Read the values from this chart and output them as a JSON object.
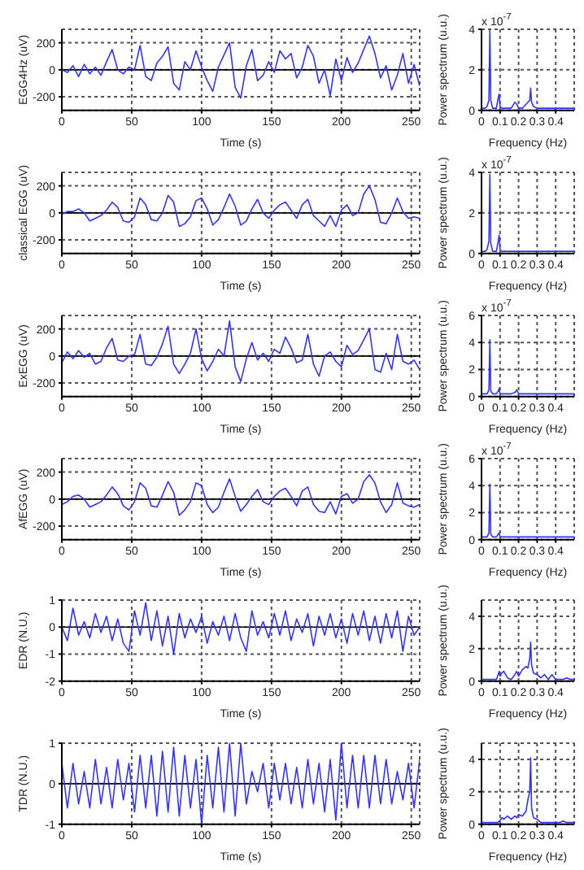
{
  "chart_data": [
    {
      "type": "line",
      "xlabel": "Time (s)",
      "ylabel": "EGG4Hz (uV)",
      "xlim": [
        0,
        256
      ],
      "xticks": [
        0,
        50,
        100,
        150,
        200,
        250
      ],
      "ylim": [
        -300,
        300
      ],
      "yticks": [
        -200,
        0,
        200
      ],
      "grid": true,
      "ref_lines": [
        {
          "axis": "y",
          "value": 0,
          "color": "#000000"
        }
      ],
      "x": [
        0,
        4,
        8,
        12,
        16,
        20,
        24,
        28,
        32,
        36,
        40,
        44,
        48,
        52,
        56,
        60,
        64,
        68,
        72,
        76,
        80,
        84,
        88,
        92,
        96,
        100,
        104,
        108,
        112,
        116,
        120,
        124,
        128,
        132,
        136,
        140,
        144,
        148,
        152,
        156,
        160,
        164,
        168,
        172,
        176,
        180,
        184,
        188,
        192,
        196,
        200,
        204,
        208,
        212,
        216,
        220,
        224,
        228,
        232,
        236,
        240,
        244,
        248,
        252,
        256
      ],
      "series": [
        {
          "color": "#3333ff",
          "values": [
            0,
            -20,
            30,
            -50,
            40,
            -30,
            20,
            -40,
            60,
            150,
            0,
            -30,
            20,
            0,
            180,
            -50,
            -80,
            50,
            100,
            170,
            -100,
            -150,
            60,
            0,
            140,
            20,
            -80,
            -160,
            20,
            110,
            200,
            -130,
            -210,
            30,
            150,
            -80,
            -40,
            60,
            -20,
            140,
            80,
            120,
            -60,
            20,
            180,
            100,
            -100,
            0,
            -190,
            80,
            -80,
            90,
            -20,
            50,
            150,
            250,
            120,
            -60,
            30,
            -150,
            -40,
            120,
            -100,
            40,
            -120
          ]
        }
      ]
    },
    {
      "type": "line",
      "xlabel": "Frequency (Hz)",
      "ylabel": "Power spectrum (u.u.)",
      "annotations": [
        "x 10$^{-7}$"
      ],
      "xlim": [
        0,
        0.5
      ],
      "xticks": [
        0,
        0.1,
        0.2,
        0.3,
        0.4
      ],
      "ylim": [
        0,
        4
      ],
      "yticks": [
        0,
        2,
        4
      ],
      "grid": true,
      "x": [
        0,
        0.01,
        0.02,
        0.03,
        0.04,
        0.045,
        0.05,
        0.06,
        0.07,
        0.08,
        0.09,
        0.095,
        0.1,
        0.11,
        0.12,
        0.14,
        0.16,
        0.18,
        0.19,
        0.2,
        0.22,
        0.24,
        0.25,
        0.26,
        0.265,
        0.27,
        0.28,
        0.3,
        0.32,
        0.34,
        0.36,
        0.38,
        0.4,
        0.42,
        0.44,
        0.46,
        0.48,
        0.5
      ],
      "series": [
        {
          "color": "#3333ff",
          "values": [
            0.1,
            0.1,
            0.1,
            0.2,
            0.5,
            4,
            0.5,
            0.1,
            0.1,
            0.1,
            0.6,
            0.8,
            0.2,
            0.1,
            0.1,
            0.1,
            0.1,
            0.4,
            0.3,
            0.1,
            0.1,
            0.3,
            0.4,
            0.5,
            1.1,
            0.4,
            0.2,
            0.1,
            0.1,
            0.1,
            0.1,
            0.1,
            0.1,
            0.1,
            0.1,
            0.1,
            0.1,
            0.1
          ]
        }
      ]
    },
    {
      "type": "line",
      "xlabel": "Time (s)",
      "ylabel": "classical EGG (uV)",
      "xlim": [
        0,
        256
      ],
      "xticks": [
        0,
        50,
        100,
        150,
        200,
        250
      ],
      "ylim": [
        -300,
        300
      ],
      "yticks": [
        -200,
        0,
        200
      ],
      "grid": true,
      "ref_lines": [
        {
          "axis": "y",
          "value": 0,
          "color": "#000000"
        }
      ],
      "x": [
        0,
        4,
        8,
        12,
        16,
        20,
        24,
        28,
        32,
        36,
        40,
        44,
        48,
        52,
        56,
        60,
        64,
        68,
        72,
        76,
        80,
        84,
        88,
        92,
        96,
        100,
        104,
        108,
        112,
        116,
        120,
        124,
        128,
        132,
        136,
        140,
        144,
        148,
        152,
        156,
        160,
        164,
        168,
        172,
        176,
        180,
        184,
        188,
        192,
        196,
        200,
        204,
        208,
        212,
        216,
        220,
        224,
        228,
        232,
        236,
        240,
        244,
        248,
        252,
        256
      ],
      "series": [
        {
          "color": "#3333ff",
          "values": [
            -10,
            10,
            10,
            30,
            0,
            -60,
            -40,
            -20,
            20,
            80,
            40,
            -60,
            -70,
            -30,
            110,
            60,
            -50,
            -60,
            0,
            130,
            80,
            -100,
            -80,
            -30,
            90,
            110,
            30,
            -90,
            -50,
            40,
            140,
            50,
            -90,
            -60,
            30,
            100,
            0,
            -40,
            20,
            60,
            80,
            20,
            -40,
            60,
            100,
            -20,
            -60,
            -100,
            -20,
            -100,
            20,
            60,
            -20,
            0,
            140,
            200,
            100,
            -70,
            -80,
            0,
            110,
            10,
            -40,
            -30,
            -40
          ]
        }
      ]
    },
    {
      "type": "line",
      "xlabel": "Frequency (Hz)",
      "ylabel": "Power spectrum (u.u.)",
      "annotations": [
        "x 10$^{-7}$"
      ],
      "xlim": [
        0,
        0.5
      ],
      "xticks": [
        0,
        0.1,
        0.2,
        0.3,
        0.4
      ],
      "ylim": [
        0,
        4
      ],
      "yticks": [
        0,
        2,
        4
      ],
      "grid": true,
      "x": [
        0,
        0.01,
        0.02,
        0.03,
        0.04,
        0.045,
        0.05,
        0.06,
        0.07,
        0.08,
        0.09,
        0.095,
        0.1,
        0.11,
        0.12,
        0.14,
        0.16,
        0.18,
        0.19,
        0.2,
        0.22,
        0.24,
        0.25,
        0.26,
        0.265,
        0.27,
        0.28,
        0.3,
        0.32,
        0.34,
        0.36,
        0.38,
        0.4,
        0.42,
        0.44,
        0.46,
        0.48,
        0.5
      ],
      "series": [
        {
          "color": "#3333ff",
          "values": [
            0.1,
            0.1,
            0.1,
            0.2,
            0.6,
            3.9,
            0.5,
            0.1,
            0.1,
            0.1,
            0.6,
            0.9,
            0.2,
            0.1,
            0.1,
            0.1,
            0.1,
            0.1,
            0.1,
            0.1,
            0.1,
            0.1,
            0.1,
            0.1,
            0.1,
            0.1,
            0.1,
            0.1,
            0.1,
            0.1,
            0.1,
            0.1,
            0.1,
            0.1,
            0.1,
            0.1,
            0.1,
            0.1
          ]
        }
      ]
    },
    {
      "type": "line",
      "xlabel": "Time (s)",
      "ylabel": "ExEGG (uV)",
      "xlim": [
        0,
        256
      ],
      "xticks": [
        0,
        50,
        100,
        150,
        200,
        250
      ],
      "ylim": [
        -300,
        300
      ],
      "yticks": [
        -200,
        0,
        200
      ],
      "grid": true,
      "ref_lines": [
        {
          "axis": "y",
          "value": 0,
          "color": "#000000"
        }
      ],
      "x": [
        0,
        4,
        8,
        12,
        16,
        20,
        24,
        28,
        32,
        36,
        40,
        44,
        48,
        52,
        56,
        60,
        64,
        68,
        72,
        76,
        80,
        84,
        88,
        92,
        96,
        100,
        104,
        108,
        112,
        116,
        120,
        124,
        128,
        132,
        136,
        140,
        144,
        148,
        152,
        156,
        160,
        164,
        168,
        172,
        176,
        180,
        184,
        188,
        192,
        196,
        200,
        204,
        208,
        212,
        216,
        220,
        224,
        228,
        232,
        236,
        240,
        244,
        248,
        252,
        256
      ],
      "series": [
        {
          "color": "#3333ff",
          "values": [
            -50,
            30,
            -20,
            40,
            -10,
            20,
            -60,
            -40,
            60,
            130,
            -30,
            -40,
            0,
            10,
            160,
            -60,
            -70,
            -10,
            90,
            220,
            -60,
            -130,
            -60,
            20,
            200,
            -20,
            -110,
            -40,
            50,
            0,
            260,
            -80,
            -190,
            -20,
            100,
            -30,
            20,
            -40,
            50,
            20,
            140,
            60,
            -50,
            -30,
            160,
            -60,
            -150,
            0,
            30,
            -40,
            -80,
            80,
            10,
            40,
            120,
            200,
            -100,
            -120,
            20,
            -100,
            160,
            -40,
            -60,
            -30,
            -100
          ]
        }
      ]
    },
    {
      "type": "line",
      "xlabel": "Frequency (Hz)",
      "ylabel": "Power spectrum (u.u.)",
      "annotations": [
        "x 10$^{-7}$"
      ],
      "xlim": [
        0,
        0.5
      ],
      "xticks": [
        0,
        0.1,
        0.2,
        0.3,
        0.4
      ],
      "ylim": [
        0,
        6
      ],
      "yticks": [
        0,
        2,
        4,
        6
      ],
      "grid": true,
      "x": [
        0,
        0.01,
        0.02,
        0.03,
        0.04,
        0.045,
        0.05,
        0.06,
        0.07,
        0.08,
        0.09,
        0.095,
        0.1,
        0.11,
        0.12,
        0.14,
        0.16,
        0.18,
        0.19,
        0.2,
        0.22,
        0.24,
        0.25,
        0.26,
        0.265,
        0.27,
        0.28,
        0.3,
        0.32,
        0.34,
        0.36,
        0.38,
        0.4,
        0.42,
        0.44,
        0.46,
        0.48,
        0.5
      ],
      "series": [
        {
          "color": "#3333ff",
          "values": [
            0.2,
            0.2,
            0.2,
            0.2,
            0.5,
            4.2,
            0.4,
            0.2,
            0.2,
            0.2,
            0.4,
            0.6,
            0.2,
            0.2,
            0.2,
            0.2,
            0.2,
            0.3,
            0.5,
            0.2,
            0.2,
            0.2,
            0.2,
            0.2,
            0.2,
            0.2,
            0.2,
            0.2,
            0.2,
            0.2,
            0.2,
            0.2,
            0.2,
            0.2,
            0.2,
            0.2,
            0.2,
            0.2
          ]
        }
      ]
    },
    {
      "type": "line",
      "xlabel": "Time (s)",
      "ylabel": "AfEGG (uV)",
      "xlim": [
        0,
        256
      ],
      "xticks": [
        0,
        50,
        100,
        150,
        200,
        250
      ],
      "ylim": [
        -300,
        300
      ],
      "yticks": [
        -200,
        0,
        200
      ],
      "grid": true,
      "ref_lines": [
        {
          "axis": "y",
          "value": 0,
          "color": "#000000"
        }
      ],
      "x": [
        0,
        4,
        8,
        12,
        16,
        20,
        24,
        28,
        32,
        36,
        40,
        44,
        48,
        52,
        56,
        60,
        64,
        68,
        72,
        76,
        80,
        84,
        88,
        92,
        96,
        100,
        104,
        108,
        112,
        116,
        120,
        124,
        128,
        132,
        136,
        140,
        144,
        148,
        152,
        156,
        160,
        164,
        168,
        172,
        176,
        180,
        184,
        188,
        192,
        196,
        200,
        204,
        208,
        212,
        216,
        220,
        224,
        228,
        232,
        236,
        240,
        244,
        248,
        252,
        256
      ],
      "series": [
        {
          "color": "#3333ff",
          "values": [
            -40,
            -20,
            20,
            30,
            0,
            -60,
            -40,
            -20,
            30,
            90,
            40,
            -50,
            -80,
            -20,
            120,
            80,
            -50,
            -60,
            30,
            130,
            50,
            -120,
            -80,
            -20,
            120,
            100,
            -40,
            -100,
            -60,
            50,
            150,
            20,
            -90,
            -40,
            20,
            70,
            -20,
            -40,
            20,
            60,
            80,
            20,
            -50,
            60,
            90,
            -40,
            -90,
            -100,
            -20,
            -110,
            20,
            40,
            -30,
            0,
            130,
            180,
            120,
            -20,
            -100,
            -40,
            120,
            -30,
            -50,
            -60,
            -40
          ]
        }
      ]
    },
    {
      "type": "line",
      "xlabel": "Frequency (Hz)",
      "ylabel": "Power spectrum (u.u.)",
      "annotations": [
        "x 10$^{-7}$"
      ],
      "xlim": [
        0,
        0.5
      ],
      "xticks": [
        0,
        0.1,
        0.2,
        0.3,
        0.4
      ],
      "ylim": [
        0,
        6
      ],
      "yticks": [
        0,
        2,
        4,
        6
      ],
      "grid": true,
      "x": [
        0,
        0.01,
        0.02,
        0.03,
        0.04,
        0.045,
        0.05,
        0.06,
        0.07,
        0.08,
        0.09,
        0.095,
        0.1,
        0.11,
        0.12,
        0.14,
        0.16,
        0.18,
        0.19,
        0.2,
        0.22,
        0.24,
        0.25,
        0.26,
        0.265,
        0.27,
        0.28,
        0.3,
        0.32,
        0.34,
        0.36,
        0.38,
        0.4,
        0.42,
        0.44,
        0.46,
        0.48,
        0.5
      ],
      "series": [
        {
          "color": "#3333ff",
          "values": [
            0.2,
            0.2,
            0.2,
            0.2,
            0.5,
            4.1,
            0.4,
            0.2,
            0.2,
            0.2,
            0.4,
            0.5,
            0.2,
            0.2,
            0.2,
            0.2,
            0.2,
            0.2,
            0.2,
            0.2,
            0.2,
            0.2,
            0.2,
            0.2,
            0.2,
            0.2,
            0.2,
            0.2,
            0.2,
            0.2,
            0.2,
            0.2,
            0.2,
            0.2,
            0.2,
            0.2,
            0.2,
            0.2
          ]
        }
      ]
    },
    {
      "type": "line",
      "xlabel": "Time (s)",
      "ylabel": "EDR (N.U.)",
      "xlim": [
        0,
        256
      ],
      "xticks": [
        0,
        50,
        100,
        150,
        200,
        250
      ],
      "ylim": [
        -2,
        1
      ],
      "yticks": [
        -2,
        -1,
        0,
        1
      ],
      "grid": true,
      "ref_lines": [
        {
          "axis": "y",
          "value": 0,
          "color": "#000000"
        }
      ],
      "x": [
        0,
        4,
        8,
        12,
        16,
        20,
        24,
        28,
        32,
        36,
        40,
        44,
        48,
        52,
        56,
        60,
        64,
        68,
        72,
        76,
        80,
        84,
        88,
        92,
        96,
        100,
        104,
        108,
        112,
        116,
        120,
        124,
        128,
        132,
        136,
        140,
        144,
        148,
        152,
        156,
        160,
        164,
        168,
        172,
        176,
        180,
        184,
        188,
        192,
        196,
        200,
        204,
        208,
        212,
        216,
        220,
        224,
        228,
        232,
        236,
        240,
        244,
        248,
        252,
        256
      ],
      "series": [
        {
          "color": "#3333ff",
          "values": [
            0,
            -0.5,
            0.7,
            -0.3,
            0.2,
            -0.4,
            0.5,
            -0.2,
            0.4,
            -0.5,
            0.3,
            -0.6,
            -0.9,
            0.6,
            -0.3,
            0.9,
            -0.5,
            0.6,
            -0.7,
            0.4,
            -1,
            0.5,
            -0.4,
            0.3,
            -0.2,
            0.4,
            -0.6,
            0.2,
            -0.3,
            0.4,
            -0.5,
            0.5,
            -0.4,
            -0.9,
            0.6,
            -0.3,
            0.2,
            -0.4,
            0.5,
            -0.3,
            0.6,
            -0.5,
            0.3,
            -0.2,
            0.5,
            -0.7,
            0.4,
            -0.3,
            0.5,
            -0.4,
            0.3,
            -0.6,
            0.5,
            -0.3,
            0.6,
            -0.5,
            0.4,
            -0.6,
            0.5,
            -0.4,
            0.6,
            -0.9,
            0.4,
            -0.3,
            0
          ]
        }
      ]
    },
    {
      "type": "line",
      "xlabel": "Frequency (Hz)",
      "ylabel": "Power spectrum (u.u.)",
      "xlim": [
        0,
        0.5
      ],
      "xticks": [
        0,
        0.1,
        0.2,
        0.3,
        0.4
      ],
      "ylim": [
        0,
        5
      ],
      "yticks": [
        0,
        2,
        4
      ],
      "grid": true,
      "x": [
        0,
        0.01,
        0.02,
        0.03,
        0.04,
        0.045,
        0.05,
        0.06,
        0.07,
        0.08,
        0.09,
        0.095,
        0.1,
        0.11,
        0.12,
        0.14,
        0.16,
        0.18,
        0.19,
        0.2,
        0.22,
        0.24,
        0.25,
        0.26,
        0.265,
        0.27,
        0.28,
        0.3,
        0.32,
        0.34,
        0.36,
        0.38,
        0.4,
        0.42,
        0.44,
        0.46,
        0.48,
        0.5
      ],
      "series": [
        {
          "color": "#3333ff",
          "values": [
            0.1,
            0.1,
            0.1,
            0.1,
            0.1,
            0.1,
            0.1,
            0.1,
            0.1,
            0.1,
            0.4,
            0.6,
            0.3,
            0.5,
            0.6,
            0.2,
            0.1,
            0.4,
            0.6,
            0.3,
            0.7,
            0.9,
            0.8,
            1.4,
            2.4,
            1.0,
            0.5,
            0.4,
            0.2,
            0.4,
            0.1,
            0.4,
            0.1,
            0.1,
            0.1,
            0.2,
            0.1,
            0.1
          ]
        }
      ]
    },
    {
      "type": "line",
      "xlabel": "Time (s)",
      "ylabel": "TDR (N.U.)",
      "xlim": [
        0,
        256
      ],
      "xticks": [
        0,
        50,
        100,
        150,
        200,
        250
      ],
      "ylim": [
        -1,
        1
      ],
      "yticks": [
        -1,
        0,
        1
      ],
      "grid": true,
      "ref_lines": [
        {
          "axis": "y",
          "value": 0,
          "color": "#000000"
        }
      ],
      "x": [
        0,
        4,
        8,
        12,
        16,
        20,
        24,
        28,
        32,
        36,
        40,
        44,
        48,
        52,
        56,
        60,
        64,
        68,
        72,
        76,
        80,
        84,
        88,
        92,
        96,
        100,
        104,
        108,
        112,
        116,
        120,
        124,
        128,
        132,
        136,
        140,
        144,
        148,
        152,
        156,
        160,
        164,
        168,
        172,
        176,
        180,
        184,
        188,
        192,
        196,
        200,
        204,
        208,
        212,
        216,
        220,
        224,
        228,
        232,
        236,
        240,
        244,
        248,
        252,
        256
      ],
      "series": [
        {
          "color": "#3333ff",
          "values": [
            0.5,
            -0.6,
            0.5,
            -0.5,
            0.3,
            -0.6,
            0.6,
            -0.5,
            0.4,
            -0.6,
            0.6,
            -0.4,
            0.5,
            -0.7,
            0.7,
            -0.6,
            0.7,
            -0.8,
            0.8,
            -0.7,
            0.9,
            -0.8,
            0.7,
            -0.6,
            0.6,
            -1,
            0.7,
            -0.6,
            0.9,
            -0.7,
            1,
            -0.8,
            1,
            -0.5,
            0.3,
            -0.2,
            0.5,
            -0.6,
            0.5,
            -0.4,
            0.5,
            -0.5,
            0.4,
            -0.6,
            0.6,
            -0.5,
            0.5,
            -0.7,
            0.6,
            -0.9,
            1,
            -0.6,
            0.7,
            -0.6,
            0.7,
            -0.6,
            0.7,
            -0.5,
            0.6,
            -0.5,
            0.3,
            -0.4,
            0.5,
            -0.6,
            0.6
          ]
        }
      ]
    },
    {
      "type": "line",
      "xlabel": "Frequency (Hz)",
      "ylabel": "Power spectrum (u.u.)",
      "xlim": [
        0,
        0.5
      ],
      "xticks": [
        0,
        0.1,
        0.2,
        0.3,
        0.4
      ],
      "ylim": [
        0,
        5
      ],
      "yticks": [
        0,
        2,
        4
      ],
      "grid": true,
      "x": [
        0,
        0.01,
        0.02,
        0.03,
        0.04,
        0.045,
        0.05,
        0.06,
        0.07,
        0.08,
        0.09,
        0.095,
        0.1,
        0.11,
        0.12,
        0.14,
        0.16,
        0.18,
        0.19,
        0.2,
        0.22,
        0.24,
        0.25,
        0.26,
        0.265,
        0.27,
        0.28,
        0.3,
        0.32,
        0.34,
        0.36,
        0.38,
        0.4,
        0.42,
        0.44,
        0.46,
        0.48,
        0.5
      ],
      "series": [
        {
          "color": "#3333ff",
          "values": [
            0.1,
            0.1,
            0.1,
            0.1,
            0.1,
            0.1,
            0.1,
            0.1,
            0.1,
            0.1,
            0.1,
            0.2,
            0.2,
            0.4,
            0.3,
            0.5,
            0.3,
            0.5,
            0.4,
            0.6,
            0.5,
            0.8,
            1.5,
            2.0,
            4.1,
            1.0,
            0.4,
            0.3,
            0.1,
            0.1,
            0.1,
            0.1,
            0.1,
            0.1,
            0.2,
            0.1,
            0.1,
            0.1
          ]
        }
      ]
    }
  ]
}
